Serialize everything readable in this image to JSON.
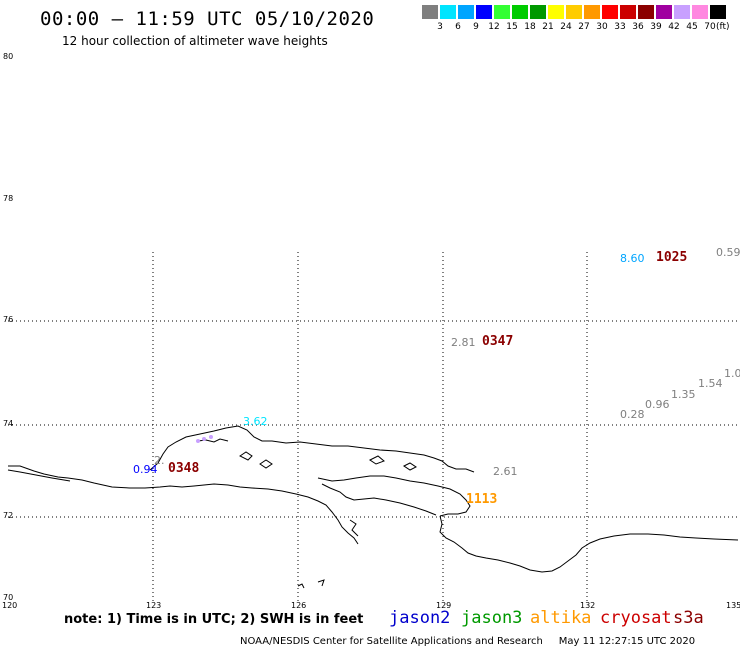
{
  "header": {
    "title": "00:00 – 11:59 UTC 05/10/2020",
    "subtitle": "12 hour collection of altimeter wave heights"
  },
  "legend": {
    "unit": "(ft)",
    "bins": [
      {
        "label": "3",
        "color": "#7f7f7f"
      },
      {
        "label": "6",
        "color": "#00e5ff"
      },
      {
        "label": "9",
        "color": "#00a5ff"
      },
      {
        "label": "12",
        "color": "#0000ff"
      },
      {
        "label": "15",
        "color": "#33ff33"
      },
      {
        "label": "18",
        "color": "#00cc00"
      },
      {
        "label": "21",
        "color": "#009900"
      },
      {
        "label": "24",
        "color": "#ffff00"
      },
      {
        "label": "27",
        "color": "#ffcc00"
      },
      {
        "label": "30",
        "color": "#ff9900"
      },
      {
        "label": "33",
        "color": "#ff0000"
      },
      {
        "label": "36",
        "color": "#cc0000"
      },
      {
        "label": "39",
        "color": "#8b0000"
      },
      {
        "label": "42",
        "color": "#a000a0"
      },
      {
        "label": "45",
        "color": "#c8a0ff"
      },
      {
        "label": "70",
        "color": "#ff88e0"
      },
      {
        "label": "",
        "color": "#000000"
      }
    ]
  },
  "map": {
    "lat_ticks": [
      "80",
      "78",
      "76",
      "74",
      "72",
      "70"
    ],
    "lon_ticks": [
      "120",
      "123",
      "126",
      "129",
      "132",
      "135"
    ]
  },
  "observations": [
    {
      "text": "8.60",
      "color": "#00a5ff"
    },
    {
      "text": "0.59",
      "color": "#7f7f7f"
    },
    {
      "text": "2.81",
      "color": "#7f7f7f"
    },
    {
      "text": "1.0",
      "color": "#7f7f7f"
    },
    {
      "text": "1.54",
      "color": "#7f7f7f"
    },
    {
      "text": "1.35",
      "color": "#7f7f7f"
    },
    {
      "text": "0.96",
      "color": "#7f7f7f"
    },
    {
      "text": "0.28",
      "color": "#7f7f7f"
    },
    {
      "text": "3.62",
      "color": "#00e5ff"
    },
    {
      "text": "2.61",
      "color": "#7f7f7f"
    },
    {
      "text": "0.94",
      "color": "#0000ff"
    },
    {
      "text": "2.",
      "color": "#7f7f7f"
    }
  ],
  "passes": [
    {
      "time": "1025",
      "color": "#8b0000"
    },
    {
      "time": "0347",
      "color": "#8b0000"
    },
    {
      "time": "0348",
      "color": "#8b0000"
    },
    {
      "time": "1113",
      "color": "#ff9900"
    }
  ],
  "footer": {
    "note": "note: 1) Time is in UTC; 2) SWH is in feet",
    "satellites": [
      {
        "name": "jason2",
        "color": "#0000cc"
      },
      {
        "name": "jason3",
        "color": "#009900"
      },
      {
        "name": "altika",
        "color": "#ff9900"
      },
      {
        "name": "cryosat",
        "color": "#cc0000"
      },
      {
        "name": "s3a",
        "color": "#8b0000"
      }
    ],
    "credit": "NOAA/NESDIS Center for Satellite Applications and Research",
    "timestamp": "May 11 12:27:15 UTC 2020"
  }
}
